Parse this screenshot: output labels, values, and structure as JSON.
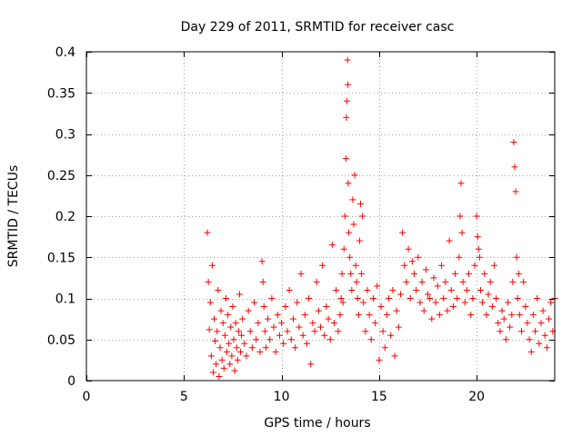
{
  "chart_data": {
    "type": "scatter",
    "title": "Day 229 of 2011, SRMTID for receiver casc",
    "xlabel": "GPS time / hours",
    "ylabel": "SRMTID / TECUs",
    "xlim": [
      0,
      24
    ],
    "ylim": [
      0,
      0.4
    ],
    "x_ticks": [
      0,
      5,
      10,
      15,
      20
    ],
    "x_tick_labels": [
      "0",
      "5",
      "10",
      "15",
      "20"
    ],
    "y_ticks": [
      0,
      0.05,
      0.1,
      0.15,
      0.2,
      0.25,
      0.3,
      0.35,
      0.4
    ],
    "y_tick_labels": [
      "0",
      "0.05",
      "0.1",
      "0.15",
      "0.2",
      "0.25",
      "0.3",
      "0.35",
      "0.4"
    ],
    "grid": true,
    "marker": "+",
    "color": "#ff0000",
    "series": [
      {
        "name": "SRMTID",
        "x": [
          6.2,
          6.25,
          6.3,
          6.35,
          6.4,
          6.45,
          6.5,
          6.55,
          6.6,
          6.65,
          6.7,
          6.75,
          6.8,
          6.85,
          6.9,
          6.95,
          7.0,
          7.05,
          7.1,
          7.15,
          7.2,
          7.25,
          7.3,
          7.35,
          7.4,
          7.45,
          7.5,
          7.55,
          7.6,
          7.65,
          7.7,
          7.75,
          7.8,
          7.85,
          7.9,
          7.95,
          8.0,
          8.1,
          8.2,
          8.3,
          8.4,
          8.5,
          8.6,
          8.7,
          8.8,
          8.9,
          9.0,
          9.05,
          9.1,
          9.15,
          9.2,
          9.3,
          9.4,
          9.5,
          9.6,
          9.7,
          9.8,
          9.9,
          10.0,
          10.1,
          10.2,
          10.3,
          10.4,
          10.5,
          10.6,
          10.7,
          10.8,
          10.9,
          11.0,
          11.1,
          11.2,
          11.3,
          11.4,
          11.5,
          11.6,
          11.7,
          11.8,
          11.9,
          12.0,
          12.1,
          12.2,
          12.3,
          12.4,
          12.5,
          12.6,
          12.7,
          12.8,
          12.9,
          13.0,
          13.05,
          13.1,
          13.15,
          13.2,
          13.25,
          13.3,
          13.32,
          13.35,
          13.38,
          13.4,
          13.42,
          13.45,
          13.5,
          13.55,
          13.6,
          13.65,
          13.7,
          13.75,
          13.8,
          13.85,
          13.9,
          13.95,
          14.0,
          14.05,
          14.1,
          14.15,
          14.2,
          14.3,
          14.4,
          14.5,
          14.6,
          14.7,
          14.8,
          14.9,
          15.0,
          15.1,
          15.2,
          15.3,
          15.4,
          15.5,
          15.6,
          15.7,
          15.8,
          15.9,
          16.0,
          16.1,
          16.2,
          16.3,
          16.4,
          16.5,
          16.6,
          16.7,
          16.8,
          16.9,
          17.0,
          17.1,
          17.2,
          17.3,
          17.4,
          17.5,
          17.6,
          17.7,
          17.8,
          17.9,
          18.0,
          18.1,
          18.2,
          18.3,
          18.4,
          18.5,
          18.6,
          18.7,
          18.8,
          18.9,
          19.0,
          19.1,
          19.15,
          19.2,
          19.25,
          19.3,
          19.4,
          19.5,
          19.6,
          19.7,
          19.8,
          19.9,
          20.0,
          20.05,
          20.1,
          20.15,
          20.2,
          20.3,
          20.4,
          20.5,
          20.6,
          20.7,
          20.8,
          20.9,
          21.0,
          21.1,
          21.2,
          21.3,
          21.4,
          21.5,
          21.6,
          21.7,
          21.8,
          21.85,
          21.9,
          21.95,
          22.0,
          22.05,
          22.1,
          22.15,
          22.2,
          22.3,
          22.4,
          22.5,
          22.6,
          22.7,
          22.8,
          22.9,
          23.0,
          23.1,
          23.2,
          23.3,
          23.4,
          23.5,
          23.6,
          23.7,
          23.8,
          23.9,
          24.0
        ],
        "y": [
          0.18,
          0.12,
          0.062,
          0.095,
          0.03,
          0.14,
          0.01,
          0.075,
          0.048,
          0.02,
          0.06,
          0.11,
          0.005,
          0.04,
          0.085,
          0.025,
          0.07,
          0.015,
          0.055,
          0.1,
          0.035,
          0.08,
          0.045,
          0.02,
          0.065,
          0.03,
          0.09,
          0.05,
          0.012,
          0.07,
          0.04,
          0.025,
          0.06,
          0.105,
          0.035,
          0.055,
          0.075,
          0.045,
          0.03,
          0.085,
          0.06,
          0.04,
          0.095,
          0.05,
          0.07,
          0.035,
          0.145,
          0.12,
          0.09,
          0.06,
          0.04,
          0.075,
          0.05,
          0.1,
          0.065,
          0.035,
          0.08,
          0.055,
          0.07,
          0.045,
          0.09,
          0.06,
          0.11,
          0.05,
          0.075,
          0.04,
          0.095,
          0.065,
          0.13,
          0.055,
          0.08,
          0.045,
          0.1,
          0.02,
          0.07,
          0.06,
          0.12,
          0.085,
          0.065,
          0.14,
          0.055,
          0.09,
          0.075,
          0.05,
          0.165,
          0.07,
          0.11,
          0.06,
          0.08,
          0.1,
          0.13,
          0.095,
          0.16,
          0.2,
          0.27,
          0.32,
          0.34,
          0.39,
          0.36,
          0.24,
          0.18,
          0.15,
          0.13,
          0.11,
          0.22,
          0.19,
          0.25,
          0.14,
          0.12,
          0.1,
          0.08,
          0.17,
          0.215,
          0.13,
          0.2,
          0.095,
          0.06,
          0.11,
          0.08,
          0.05,
          0.1,
          0.07,
          0.115,
          0.025,
          0.09,
          0.06,
          0.04,
          0.08,
          0.1,
          0.055,
          0.11,
          0.03,
          0.085,
          0.065,
          0.105,
          0.18,
          0.14,
          0.12,
          0.16,
          0.1,
          0.145,
          0.13,
          0.11,
          0.15,
          0.095,
          0.12,
          0.085,
          0.135,
          0.105,
          0.1,
          0.075,
          0.125,
          0.095,
          0.115,
          0.08,
          0.14,
          0.1,
          0.12,
          0.085,
          0.17,
          0.11,
          0.09,
          0.13,
          0.1,
          0.15,
          0.2,
          0.24,
          0.18,
          0.12,
          0.095,
          0.11,
          0.13,
          0.08,
          0.1,
          0.14,
          0.2,
          0.175,
          0.16,
          0.15,
          0.11,
          0.095,
          0.13,
          0.08,
          0.105,
          0.12,
          0.09,
          0.14,
          0.1,
          0.07,
          0.06,
          0.085,
          0.075,
          0.05,
          0.095,
          0.065,
          0.08,
          0.12,
          0.29,
          0.26,
          0.23,
          0.15,
          0.1,
          0.13,
          0.08,
          0.06,
          0.12,
          0.09,
          0.07,
          0.05,
          0.035,
          0.08,
          0.06,
          0.1,
          0.045,
          0.07,
          0.085,
          0.055,
          0.04,
          0.075,
          0.095,
          0.06,
          0.1
        ]
      }
    ]
  }
}
